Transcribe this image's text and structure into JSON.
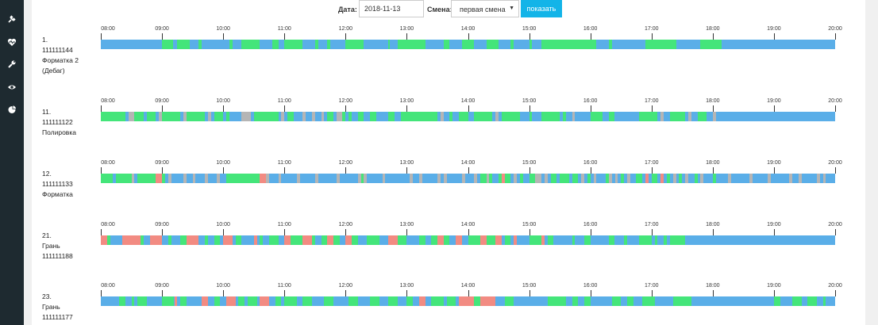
{
  "sidebar": {
    "icons": [
      "plug-icon",
      "heartbeat-icon",
      "wrench-icon",
      "eye-icon",
      "pie-chart-icon"
    ]
  },
  "filters": {
    "date_label": "Дата:",
    "date_value": "2018-11-13",
    "shift_label": "Смена:",
    "shift_value": "первая смена",
    "show_button": "показать"
  },
  "timeline": {
    "hours": [
      "08:00",
      "09:00",
      "10:00",
      "11:00",
      "12:00",
      "13:00",
      "14:00",
      "15:00",
      "16:00",
      "17:00",
      "18:00",
      "19:00",
      "20:00"
    ],
    "start_hour": 8,
    "end_hour": 20,
    "colors": {
      "idle": "#5aaee8",
      "work": "#44e57a",
      "alarm": "#f28b82",
      "off": "#b5b5b5"
    }
  },
  "machines": [
    {
      "label": [
        "1.",
        "111111144",
        "Форматка 2",
        "(Дебаг)"
      ],
      "segments": [
        [
          9.0,
          9.18,
          "work"
        ],
        [
          9.25,
          9.45,
          "work"
        ],
        [
          9.6,
          9.65,
          "work"
        ],
        [
          10.1,
          10.15,
          "work"
        ],
        [
          10.3,
          10.6,
          "work"
        ],
        [
          10.8,
          10.9,
          "work"
        ],
        [
          11.0,
          11.3,
          "work"
        ],
        [
          11.5,
          11.55,
          "work"
        ],
        [
          11.7,
          11.75,
          "work"
        ],
        [
          12.0,
          12.3,
          "work"
        ],
        [
          12.7,
          12.72,
          "work"
        ],
        [
          12.85,
          13.3,
          "work"
        ],
        [
          13.6,
          13.7,
          "work"
        ],
        [
          13.9,
          14.1,
          "work"
        ],
        [
          14.3,
          14.5,
          "work"
        ],
        [
          14.7,
          14.75,
          "work"
        ],
        [
          15.0,
          15.05,
          "work"
        ],
        [
          15.2,
          16.1,
          "work"
        ],
        [
          16.3,
          16.35,
          "work"
        ],
        [
          16.9,
          17.4,
          "work"
        ],
        [
          17.8,
          18.15,
          "work"
        ]
      ]
    },
    {
      "label": [
        "11.",
        "111111122",
        "Полировка"
      ],
      "segments": [
        [
          8.0,
          8.4,
          "work"
        ],
        [
          8.45,
          8.55,
          "off"
        ],
        [
          8.55,
          8.7,
          "work"
        ],
        [
          8.75,
          8.9,
          "work"
        ],
        [
          8.95,
          9.0,
          "off"
        ],
        [
          9.0,
          9.3,
          "work"
        ],
        [
          9.35,
          9.4,
          "off"
        ],
        [
          9.4,
          9.7,
          "work"
        ],
        [
          9.75,
          9.8,
          "off"
        ],
        [
          9.85,
          10.0,
          "work"
        ],
        [
          10.05,
          10.1,
          "work"
        ],
        [
          10.3,
          10.45,
          "off"
        ],
        [
          10.5,
          10.9,
          "work"
        ],
        [
          10.95,
          11.0,
          "off"
        ],
        [
          11.05,
          11.15,
          "work"
        ],
        [
          11.3,
          11.35,
          "off"
        ],
        [
          11.45,
          11.5,
          "off"
        ],
        [
          11.6,
          11.65,
          "off"
        ],
        [
          11.7,
          11.8,
          "work"
        ],
        [
          11.85,
          11.95,
          "off"
        ],
        [
          11.95,
          12.0,
          "work"
        ],
        [
          12.05,
          12.1,
          "work"
        ],
        [
          12.2,
          12.3,
          "work"
        ],
        [
          12.4,
          12.5,
          "work"
        ],
        [
          12.7,
          12.8,
          "work"
        ],
        [
          12.9,
          13.5,
          "work"
        ],
        [
          13.55,
          13.6,
          "off"
        ],
        [
          13.7,
          13.75,
          "work"
        ],
        [
          13.85,
          14.0,
          "work"
        ],
        [
          14.1,
          14.4,
          "work"
        ],
        [
          14.45,
          14.5,
          "off"
        ],
        [
          14.55,
          14.85,
          "work"
        ],
        [
          15.0,
          15.05,
          "work"
        ],
        [
          15.2,
          15.5,
          "work"
        ],
        [
          15.55,
          15.6,
          "work"
        ],
        [
          15.7,
          15.75,
          "off"
        ],
        [
          16.0,
          16.2,
          "work"
        ],
        [
          16.3,
          16.4,
          "work"
        ],
        [
          16.8,
          17.1,
          "work"
        ],
        [
          17.15,
          17.2,
          "off"
        ],
        [
          17.3,
          17.55,
          "work"
        ],
        [
          17.6,
          17.65,
          "off"
        ],
        [
          17.75,
          17.9,
          "work"
        ],
        [
          18.0,
          18.05,
          "off"
        ]
      ]
    },
    {
      "label": [
        "12.",
        "111111133",
        "Форматка"
      ],
      "segments": [
        [
          8.0,
          8.2,
          "work"
        ],
        [
          8.25,
          8.5,
          "work"
        ],
        [
          8.5,
          8.55,
          "off"
        ],
        [
          8.6,
          8.9,
          "work"
        ],
        [
          8.9,
          9.0,
          "alarm"
        ],
        [
          9.0,
          9.05,
          "work"
        ],
        [
          9.1,
          9.15,
          "off"
        ],
        [
          9.35,
          9.4,
          "off"
        ],
        [
          9.5,
          9.55,
          "off"
        ],
        [
          9.7,
          9.75,
          "off"
        ],
        [
          9.9,
          9.95,
          "off"
        ],
        [
          10.05,
          10.6,
          "work"
        ],
        [
          10.6,
          10.7,
          "alarm"
        ],
        [
          10.7,
          10.75,
          "off"
        ],
        [
          10.9,
          10.95,
          "off"
        ],
        [
          11.2,
          11.25,
          "off"
        ],
        [
          11.5,
          11.55,
          "off"
        ],
        [
          11.85,
          11.9,
          "off"
        ],
        [
          12.2,
          12.25,
          "off"
        ],
        [
          12.25,
          12.3,
          "work"
        ],
        [
          12.3,
          12.35,
          "off"
        ],
        [
          12.6,
          12.65,
          "off"
        ],
        [
          13.05,
          13.1,
          "off"
        ],
        [
          13.2,
          13.25,
          "off"
        ],
        [
          13.5,
          13.55,
          "off"
        ],
        [
          13.6,
          13.65,
          "off"
        ],
        [
          13.9,
          13.95,
          "off"
        ],
        [
          14.1,
          14.15,
          "off"
        ],
        [
          14.2,
          14.3,
          "work"
        ],
        [
          14.3,
          14.35,
          "off"
        ],
        [
          14.35,
          14.4,
          "work"
        ],
        [
          14.5,
          14.55,
          "work"
        ],
        [
          14.55,
          14.6,
          "alarm"
        ],
        [
          14.6,
          14.7,
          "work"
        ],
        [
          14.75,
          14.8,
          "off"
        ],
        [
          14.85,
          14.9,
          "work"
        ],
        [
          15.0,
          15.1,
          "work"
        ],
        [
          15.1,
          15.2,
          "off"
        ],
        [
          15.25,
          15.3,
          "off"
        ],
        [
          15.35,
          15.45,
          "work"
        ],
        [
          15.5,
          15.65,
          "work"
        ],
        [
          15.7,
          15.8,
          "work"
        ],
        [
          15.85,
          15.9,
          "off"
        ],
        [
          15.95,
          16.0,
          "work"
        ],
        [
          16.05,
          16.1,
          "off"
        ],
        [
          16.25,
          16.3,
          "work"
        ],
        [
          16.3,
          16.35,
          "off"
        ],
        [
          16.4,
          16.45,
          "off"
        ],
        [
          16.5,
          16.55,
          "work"
        ],
        [
          16.6,
          16.65,
          "off"
        ],
        [
          16.75,
          16.85,
          "work"
        ],
        [
          16.9,
          16.95,
          "alarm"
        ],
        [
          17.0,
          17.1,
          "work"
        ],
        [
          17.15,
          17.2,
          "alarm"
        ],
        [
          17.25,
          17.3,
          "work"
        ],
        [
          17.35,
          17.4,
          "off"
        ],
        [
          17.45,
          17.5,
          "work"
        ],
        [
          17.55,
          17.6,
          "off"
        ],
        [
          17.7,
          17.75,
          "work"
        ],
        [
          17.8,
          17.85,
          "off"
        ],
        [
          18.0,
          18.05,
          "work"
        ],
        [
          18.25,
          18.3,
          "off"
        ],
        [
          18.6,
          18.65,
          "off"
        ],
        [
          18.9,
          18.95,
          "off"
        ],
        [
          19.25,
          19.3,
          "off"
        ],
        [
          19.4,
          19.45,
          "off"
        ],
        [
          19.7,
          19.75,
          "off"
        ],
        [
          19.8,
          19.85,
          "off"
        ]
      ]
    },
    {
      "label": [
        "21.",
        "Грань",
        "111111188"
      ],
      "segments": [
        [
          8.0,
          8.1,
          "alarm"
        ],
        [
          8.1,
          8.15,
          "work"
        ],
        [
          8.35,
          8.65,
          "alarm"
        ],
        [
          8.65,
          8.7,
          "work"
        ],
        [
          8.8,
          9.0,
          "alarm"
        ],
        [
          9.1,
          9.15,
          "work"
        ],
        [
          9.3,
          9.4,
          "work"
        ],
        [
          9.4,
          9.6,
          "alarm"
        ],
        [
          9.7,
          9.75,
          "work"
        ],
        [
          9.85,
          9.95,
          "work"
        ],
        [
          10.0,
          10.15,
          "alarm"
        ],
        [
          10.2,
          10.3,
          "work"
        ],
        [
          10.5,
          10.55,
          "alarm"
        ],
        [
          10.6,
          10.65,
          "work"
        ],
        [
          10.75,
          10.9,
          "work"
        ],
        [
          11.0,
          11.1,
          "alarm"
        ],
        [
          11.1,
          11.3,
          "work"
        ],
        [
          11.3,
          11.45,
          "alarm"
        ],
        [
          11.45,
          11.5,
          "work"
        ],
        [
          11.6,
          11.7,
          "work"
        ],
        [
          11.7,
          11.8,
          "alarm"
        ],
        [
          11.8,
          11.9,
          "work"
        ],
        [
          12.0,
          12.1,
          "alarm"
        ],
        [
          12.1,
          12.2,
          "work"
        ],
        [
          12.35,
          12.55,
          "work"
        ],
        [
          12.7,
          12.85,
          "alarm"
        ],
        [
          12.85,
          13.0,
          "work"
        ],
        [
          13.2,
          13.3,
          "work"
        ],
        [
          13.4,
          13.5,
          "work"
        ],
        [
          13.5,
          13.6,
          "alarm"
        ],
        [
          13.6,
          13.7,
          "work"
        ],
        [
          13.8,
          13.9,
          "alarm"
        ],
        [
          14.0,
          14.2,
          "work"
        ],
        [
          14.2,
          14.3,
          "alarm"
        ],
        [
          14.3,
          14.45,
          "work"
        ],
        [
          14.45,
          14.55,
          "alarm"
        ],
        [
          14.6,
          14.7,
          "work"
        ],
        [
          14.75,
          14.8,
          "alarm"
        ],
        [
          15.0,
          15.2,
          "work"
        ],
        [
          15.2,
          15.25,
          "alarm"
        ],
        [
          15.3,
          15.4,
          "work"
        ],
        [
          15.7,
          15.75,
          "work"
        ],
        [
          15.9,
          16.0,
          "work"
        ],
        [
          16.3,
          16.4,
          "work"
        ],
        [
          16.55,
          16.6,
          "work"
        ],
        [
          16.8,
          17.0,
          "work"
        ],
        [
          17.05,
          17.1,
          "work"
        ],
        [
          17.2,
          17.25,
          "work"
        ],
        [
          17.3,
          17.55,
          "work"
        ]
      ]
    },
    {
      "label": [
        "23.",
        "Грань",
        "111111177"
      ],
      "segments": [
        [
          8.3,
          8.4,
          "work"
        ],
        [
          8.5,
          8.55,
          "work"
        ],
        [
          8.6,
          8.75,
          "work"
        ],
        [
          9.0,
          9.2,
          "work"
        ],
        [
          9.2,
          9.25,
          "alarm"
        ],
        [
          9.3,
          9.4,
          "work"
        ],
        [
          9.65,
          9.75,
          "alarm"
        ],
        [
          9.85,
          9.95,
          "work"
        ],
        [
          10.05,
          10.2,
          "alarm"
        ],
        [
          10.25,
          10.35,
          "work"
        ],
        [
          10.4,
          10.55,
          "work"
        ],
        [
          10.6,
          10.75,
          "alarm"
        ],
        [
          10.85,
          10.95,
          "work"
        ],
        [
          11.0,
          11.2,
          "work"
        ],
        [
          11.3,
          11.45,
          "work"
        ],
        [
          11.65,
          11.8,
          "work"
        ],
        [
          12.05,
          12.2,
          "work"
        ],
        [
          12.4,
          12.55,
          "work"
        ],
        [
          12.7,
          12.85,
          "work"
        ],
        [
          13.0,
          13.1,
          "work"
        ],
        [
          13.2,
          13.3,
          "alarm"
        ],
        [
          13.4,
          13.6,
          "work"
        ],
        [
          13.65,
          13.8,
          "work"
        ],
        [
          13.85,
          14.1,
          "alarm"
        ],
        [
          14.1,
          14.2,
          "work"
        ],
        [
          14.2,
          14.45,
          "alarm"
        ],
        [
          14.6,
          14.75,
          "work"
        ],
        [
          15.3,
          15.6,
          "work"
        ],
        [
          15.7,
          15.8,
          "work"
        ],
        [
          15.9,
          16.0,
          "work"
        ],
        [
          16.35,
          16.5,
          "work"
        ],
        [
          16.6,
          16.7,
          "work"
        ],
        [
          16.85,
          17.05,
          "work"
        ],
        [
          17.35,
          17.65,
          "work"
        ],
        [
          19.0,
          19.1,
          "work"
        ],
        [
          19.3,
          19.45,
          "work"
        ],
        [
          19.55,
          19.7,
          "work"
        ],
        [
          19.8,
          19.85,
          "work"
        ]
      ]
    }
  ]
}
